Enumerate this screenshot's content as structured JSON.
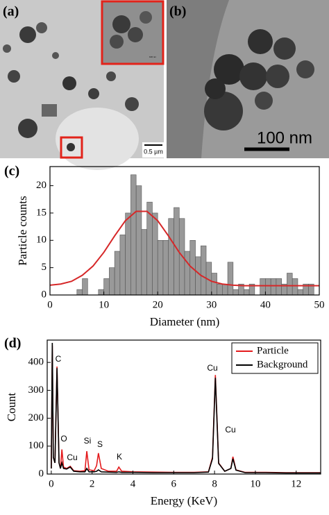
{
  "images": [
    {
      "label": "(a)",
      "scale_bar": "0.5 µm",
      "inset_scale_bar": "100 nm"
    },
    {
      "label": "(b)",
      "scale_bar": "100 nm"
    }
  ],
  "chart_data": [
    {
      "type": "histogram",
      "label": "(c)",
      "xlabel": "Diameter (nm)",
      "ylabel": "Particle counts",
      "color": "#999999",
      "bins": [
        5,
        6,
        7,
        8,
        9,
        10,
        11,
        12,
        13,
        14,
        15,
        16,
        17,
        18,
        19,
        20,
        21,
        22,
        23,
        24,
        25,
        26,
        27,
        28,
        29,
        30,
        31,
        32,
        33,
        34,
        35,
        36,
        37,
        38,
        39,
        40,
        41,
        42,
        43,
        44,
        45,
        46,
        47,
        48,
        49
      ],
      "counts": [
        1,
        3,
        0,
        0,
        1,
        3,
        5,
        8,
        11,
        15,
        22,
        20,
        12,
        17,
        15,
        10,
        10,
        14,
        16,
        14,
        8,
        10,
        7,
        9,
        6,
        4,
        2,
        2,
        6,
        1,
        2,
        1,
        2,
        0,
        3,
        3,
        3,
        3,
        2,
        4,
        3,
        1,
        2,
        2
      ],
      "fit": {
        "color": "#d62728",
        "x": [
          0,
          2,
          4,
          6,
          8,
          10,
          12,
          14,
          16,
          18,
          20,
          22,
          24,
          26,
          28,
          30,
          32,
          34,
          36,
          40,
          45,
          50
        ],
        "values": [
          1.8,
          2.0,
          2.5,
          3.6,
          5.3,
          7.8,
          10.8,
          13.6,
          15.3,
          15.3,
          13.6,
          10.8,
          7.8,
          5.3,
          3.6,
          2.5,
          2.0,
          1.8,
          1.7,
          1.7,
          1.7,
          1.7
        ]
      },
      "xlim": [
        0,
        50
      ],
      "xticks": [
        0,
        10,
        20,
        30,
        40,
        50
      ],
      "ylim": [
        0,
        23.5
      ],
      "yticks": [
        0,
        5,
        10,
        15,
        20
      ]
    },
    {
      "type": "line",
      "label": "(d)",
      "xlabel": "Energy (KeV)",
      "ylabel": "Count",
      "x": [
        0,
        0.05,
        0.1,
        0.18,
        0.28,
        0.38,
        0.45,
        0.52,
        0.6,
        0.75,
        0.93,
        1.1,
        1.4,
        1.65,
        1.74,
        1.85,
        2.1,
        2.22,
        2.31,
        2.45,
        2.8,
        3.2,
        3.31,
        3.45,
        4,
        5,
        6,
        7,
        7.7,
        7.9,
        8.04,
        8.2,
        8.5,
        8.8,
        8.9,
        9.05,
        9.5,
        10.5,
        11.5,
        12.5,
        13.2
      ],
      "series": [
        {
          "name": "Particle",
          "color": "#e41a1c",
          "values": [
            20,
            460,
            60,
            40,
            385,
            40,
            20,
            88,
            25,
            20,
            28,
            12,
            10,
            12,
            82,
            15,
            12,
            30,
            75,
            20,
            10,
            10,
            25,
            10,
            8,
            7,
            6,
            6,
            8,
            60,
            355,
            40,
            10,
            20,
            62,
            15,
            6,
            6,
            5,
            5,
            5
          ]
        },
        {
          "name": "Background",
          "color": "#000000",
          "values": [
            20,
            470,
            60,
            40,
            380,
            40,
            20,
            40,
            20,
            18,
            25,
            10,
            8,
            8,
            20,
            8,
            8,
            10,
            15,
            8,
            7,
            6,
            8,
            6,
            6,
            5,
            5,
            5,
            7,
            55,
            345,
            38,
            10,
            20,
            55,
            14,
            5,
            5,
            4,
            4,
            4
          ]
        }
      ],
      "annotations": [
        "C",
        "O",
        "Cu",
        "Si",
        "S",
        "K",
        "Cu",
        "Cu"
      ],
      "legend": "upper right",
      "xlim": [
        -0.2,
        13.2
      ],
      "xticks": [
        0,
        2,
        4,
        6,
        8,
        10,
        12
      ],
      "ylim": [
        0,
        480
      ],
      "yticks": [
        0,
        100,
        200,
        300,
        400
      ]
    }
  ]
}
